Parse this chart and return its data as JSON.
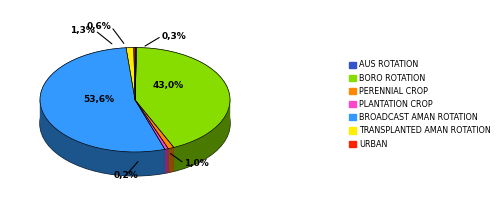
{
  "labels": [
    "AUS ROTATION",
    "BORO ROTATION",
    "PERENNIAL CROP",
    "PLANTATION CROP",
    "BROADCAST AMAN ROTATION",
    "TRANSPLANTED AMAN ROTATION",
    "URBAN"
  ],
  "values": [
    0.3,
    43.0,
    1.0,
    0.6,
    53.6,
    1.3,
    0.2
  ],
  "colors": [
    "#3355CC",
    "#88DD00",
    "#FF8800",
    "#FF44CC",
    "#3399FF",
    "#FFEE00",
    "#FF2200"
  ],
  "edge_colors": [
    "#223399",
    "#55AA00",
    "#CC6600",
    "#CC0099",
    "#1166CC",
    "#CCBB00",
    "#CC0000"
  ],
  "figsize": [
    5.0,
    2.09
  ],
  "dpi": 100,
  "startangle": 90,
  "pct_labels": [
    "0,3%",
    "43,0%",
    "1,0%",
    "0,6%",
    "53,6%",
    "1,3%",
    "0,2%"
  ],
  "legend_labels": [
    "AUS ROTATION",
    "BORO ROTATION",
    "PERENNIAL CROP",
    "PLANTATION CROP",
    "BROADCAST AMAN ROTATION",
    "TRANSPLANTED AMAN ROTATION",
    "URBAN"
  ]
}
